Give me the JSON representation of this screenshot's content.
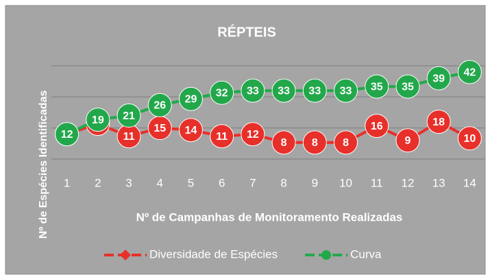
{
  "chart_data": {
    "type": "line",
    "title": "RÉPTEIS",
    "x_label": "Nº de Campanhas de Monitoramento Realizadas",
    "y_label": "Nº de Espécies Identificadas",
    "categories": [
      "1",
      "2",
      "3",
      "4",
      "5",
      "6",
      "7",
      "8",
      "9",
      "10",
      "11",
      "12",
      "13",
      "14"
    ],
    "series": [
      {
        "name": "Diversidade de Espécies",
        "color": "#e8302a",
        "marker": "diamond",
        "values": [
          12,
          17,
          11,
          15,
          14,
          11,
          12,
          8,
          8,
          8,
          16,
          9,
          18,
          10
        ]
      },
      {
        "name": "Curva",
        "color": "#22a84b",
        "marker": "circle",
        "values": [
          12,
          19,
          21,
          26,
          29,
          32,
          33,
          33,
          33,
          33,
          35,
          35,
          39,
          42
        ]
      }
    ],
    "ylim": [
      0,
      45
    ],
    "yticks": [
      0,
      15,
      30,
      45
    ],
    "grid": true
  }
}
